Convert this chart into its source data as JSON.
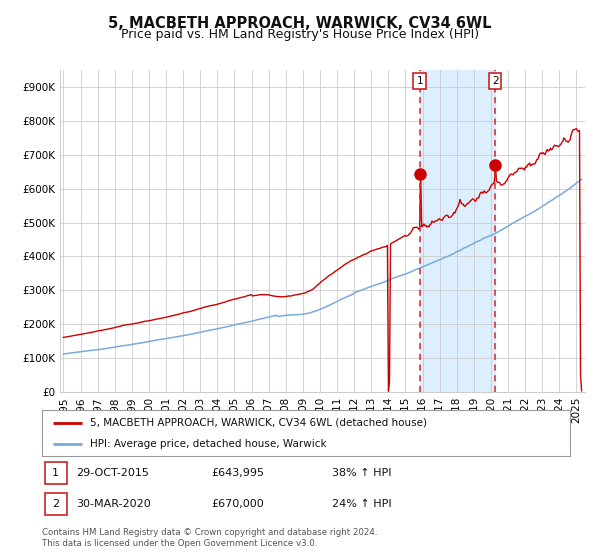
{
  "title": "5, MACBETH APPROACH, WARWICK, CV34 6WL",
  "subtitle": "Price paid vs. HM Land Registry's House Price Index (HPI)",
  "ylabel_ticks": [
    "£0",
    "£100K",
    "£200K",
    "£300K",
    "£400K",
    "£500K",
    "£600K",
    "£700K",
    "£800K",
    "£900K"
  ],
  "ytick_values": [
    0,
    100000,
    200000,
    300000,
    400000,
    500000,
    600000,
    700000,
    800000,
    900000
  ],
  "ylim": [
    0,
    950000
  ],
  "xlim_start": 1994.8,
  "xlim_end": 2025.5,
  "red_line_color": "#cc0000",
  "blue_line_color": "#7aaadd",
  "shade_color": "#ddeeff",
  "grid_color": "#cccccc",
  "bg_color": "#ffffff",
  "dashed_line_color": "#dd2222",
  "point1_x": 2015.83,
  "point1_y": 643995,
  "point2_x": 2020.25,
  "point2_y": 670000,
  "vline1_x": 2015.83,
  "vline2_x": 2020.25,
  "legend_red": "5, MACBETH APPROACH, WARWICK, CV34 6WL (detached house)",
  "legend_blue": "HPI: Average price, detached house, Warwick",
  "footer": "Contains HM Land Registry data © Crown copyright and database right 2024.\nThis data is licensed under the Open Government Licence v3.0.",
  "title_fontsize": 10.5,
  "subtitle_fontsize": 9,
  "tick_fontsize": 7.5,
  "xtick_years": [
    1995,
    1996,
    1997,
    1998,
    1999,
    2000,
    2001,
    2002,
    2003,
    2004,
    2005,
    2006,
    2007,
    2008,
    2009,
    2010,
    2011,
    2012,
    2013,
    2014,
    2015,
    2016,
    2017,
    2018,
    2019,
    2020,
    2021,
    2022,
    2023,
    2024,
    2025
  ]
}
